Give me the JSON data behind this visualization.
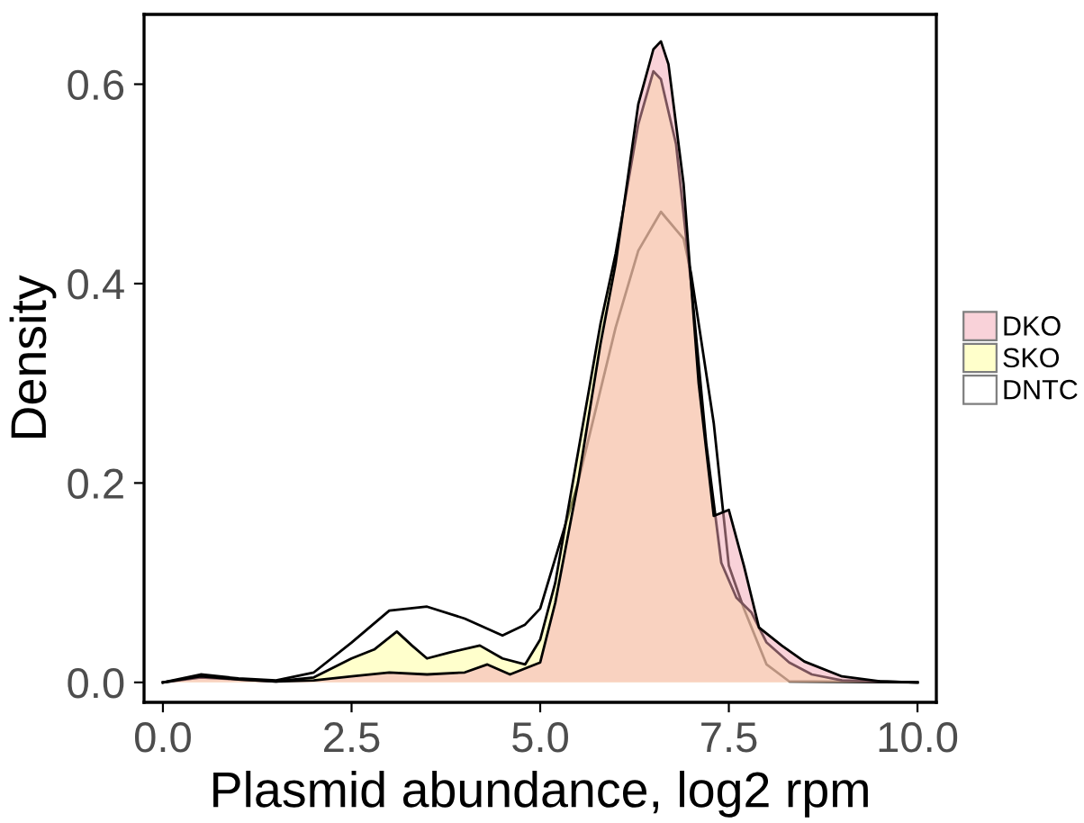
{
  "chart_data": {
    "type": "area",
    "xlabel": "Plasmid abundance, log2 rpm",
    "ylabel": "Density",
    "xlim": [
      -0.25,
      10.25
    ],
    "ylim": [
      -0.02,
      0.67
    ],
    "xticks": [
      {
        "value": 0,
        "label": "0.0"
      },
      {
        "value": 2.5,
        "label": "2.5"
      },
      {
        "value": 5,
        "label": "5.0"
      },
      {
        "value": 7.5,
        "label": "7.5"
      },
      {
        "value": 10,
        "label": "10.0"
      }
    ],
    "yticks": [
      {
        "value": 0,
        "label": "0.0"
      },
      {
        "value": 0.2,
        "label": "0.2"
      },
      {
        "value": 0.4,
        "label": "0.4"
      },
      {
        "value": 0.6,
        "label": "0.6"
      }
    ],
    "grid": false,
    "legend": "right",
    "series": [
      {
        "name": "DKO",
        "color": "#f4a6b4",
        "x": [
          0,
          0.5,
          1,
          1.5,
          2,
          2.5,
          3,
          3.5,
          4,
          4.3,
          4.6,
          5,
          5.2,
          5.5,
          5.8,
          6,
          6.3,
          6.5,
          6.6,
          6.7,
          6.9,
          7.1,
          7.3,
          7.5,
          7.7,
          7.9,
          8.2,
          8.5,
          9,
          9.5,
          10
        ],
        "values": [
          0,
          0.006,
          0.003,
          0.001,
          0.002,
          0.006,
          0.01,
          0.008,
          0.01,
          0.018,
          0.008,
          0.02,
          0.08,
          0.2,
          0.34,
          0.42,
          0.58,
          0.635,
          0.643,
          0.62,
          0.5,
          0.3,
          0.167,
          0.173,
          0.117,
          0.055,
          0.037,
          0.021,
          0.006,
          0.001,
          0
        ]
      },
      {
        "name": "SKO",
        "color": "#ffff99",
        "x": [
          0,
          0.5,
          1,
          1.5,
          2,
          2.5,
          2.8,
          3.1,
          3.3,
          3.5,
          3.8,
          4.2,
          4.5,
          4.8,
          5,
          5.2,
          5.5,
          5.8,
          6,
          6.3,
          6.5,
          6.6,
          6.8,
          7,
          7.2,
          7.4,
          7.6,
          7.8,
          8,
          8.3,
          8.6,
          9,
          10
        ],
        "values": [
          0,
          0.005,
          0.003,
          0.001,
          0.005,
          0.024,
          0.033,
          0.051,
          0.037,
          0.024,
          0.03,
          0.037,
          0.024,
          0.018,
          0.043,
          0.1,
          0.23,
          0.36,
          0.43,
          0.56,
          0.613,
          0.605,
          0.54,
          0.4,
          0.24,
          0.12,
          0.085,
          0.07,
          0.04,
          0.02,
          0.008,
          0.002,
          0
        ]
      },
      {
        "name": "DNTC",
        "color": "#ffffff",
        "x": [
          0,
          0.5,
          1,
          1.5,
          2,
          2.5,
          3,
          3.5,
          4,
          4.5,
          4.8,
          5,
          5.5,
          6,
          6.3,
          6.6,
          6.9,
          7,
          7.3,
          7.5,
          7.7,
          8,
          8.3,
          10
        ],
        "values": [
          0,
          0.008,
          0.004,
          0.002,
          0.01,
          0.04,
          0.072,
          0.076,
          0.064,
          0.047,
          0.058,
          0.074,
          0.2,
          0.356,
          0.433,
          0.472,
          0.445,
          0.41,
          0.26,
          0.117,
          0.074,
          0.018,
          0.001,
          0
        ]
      }
    ]
  }
}
